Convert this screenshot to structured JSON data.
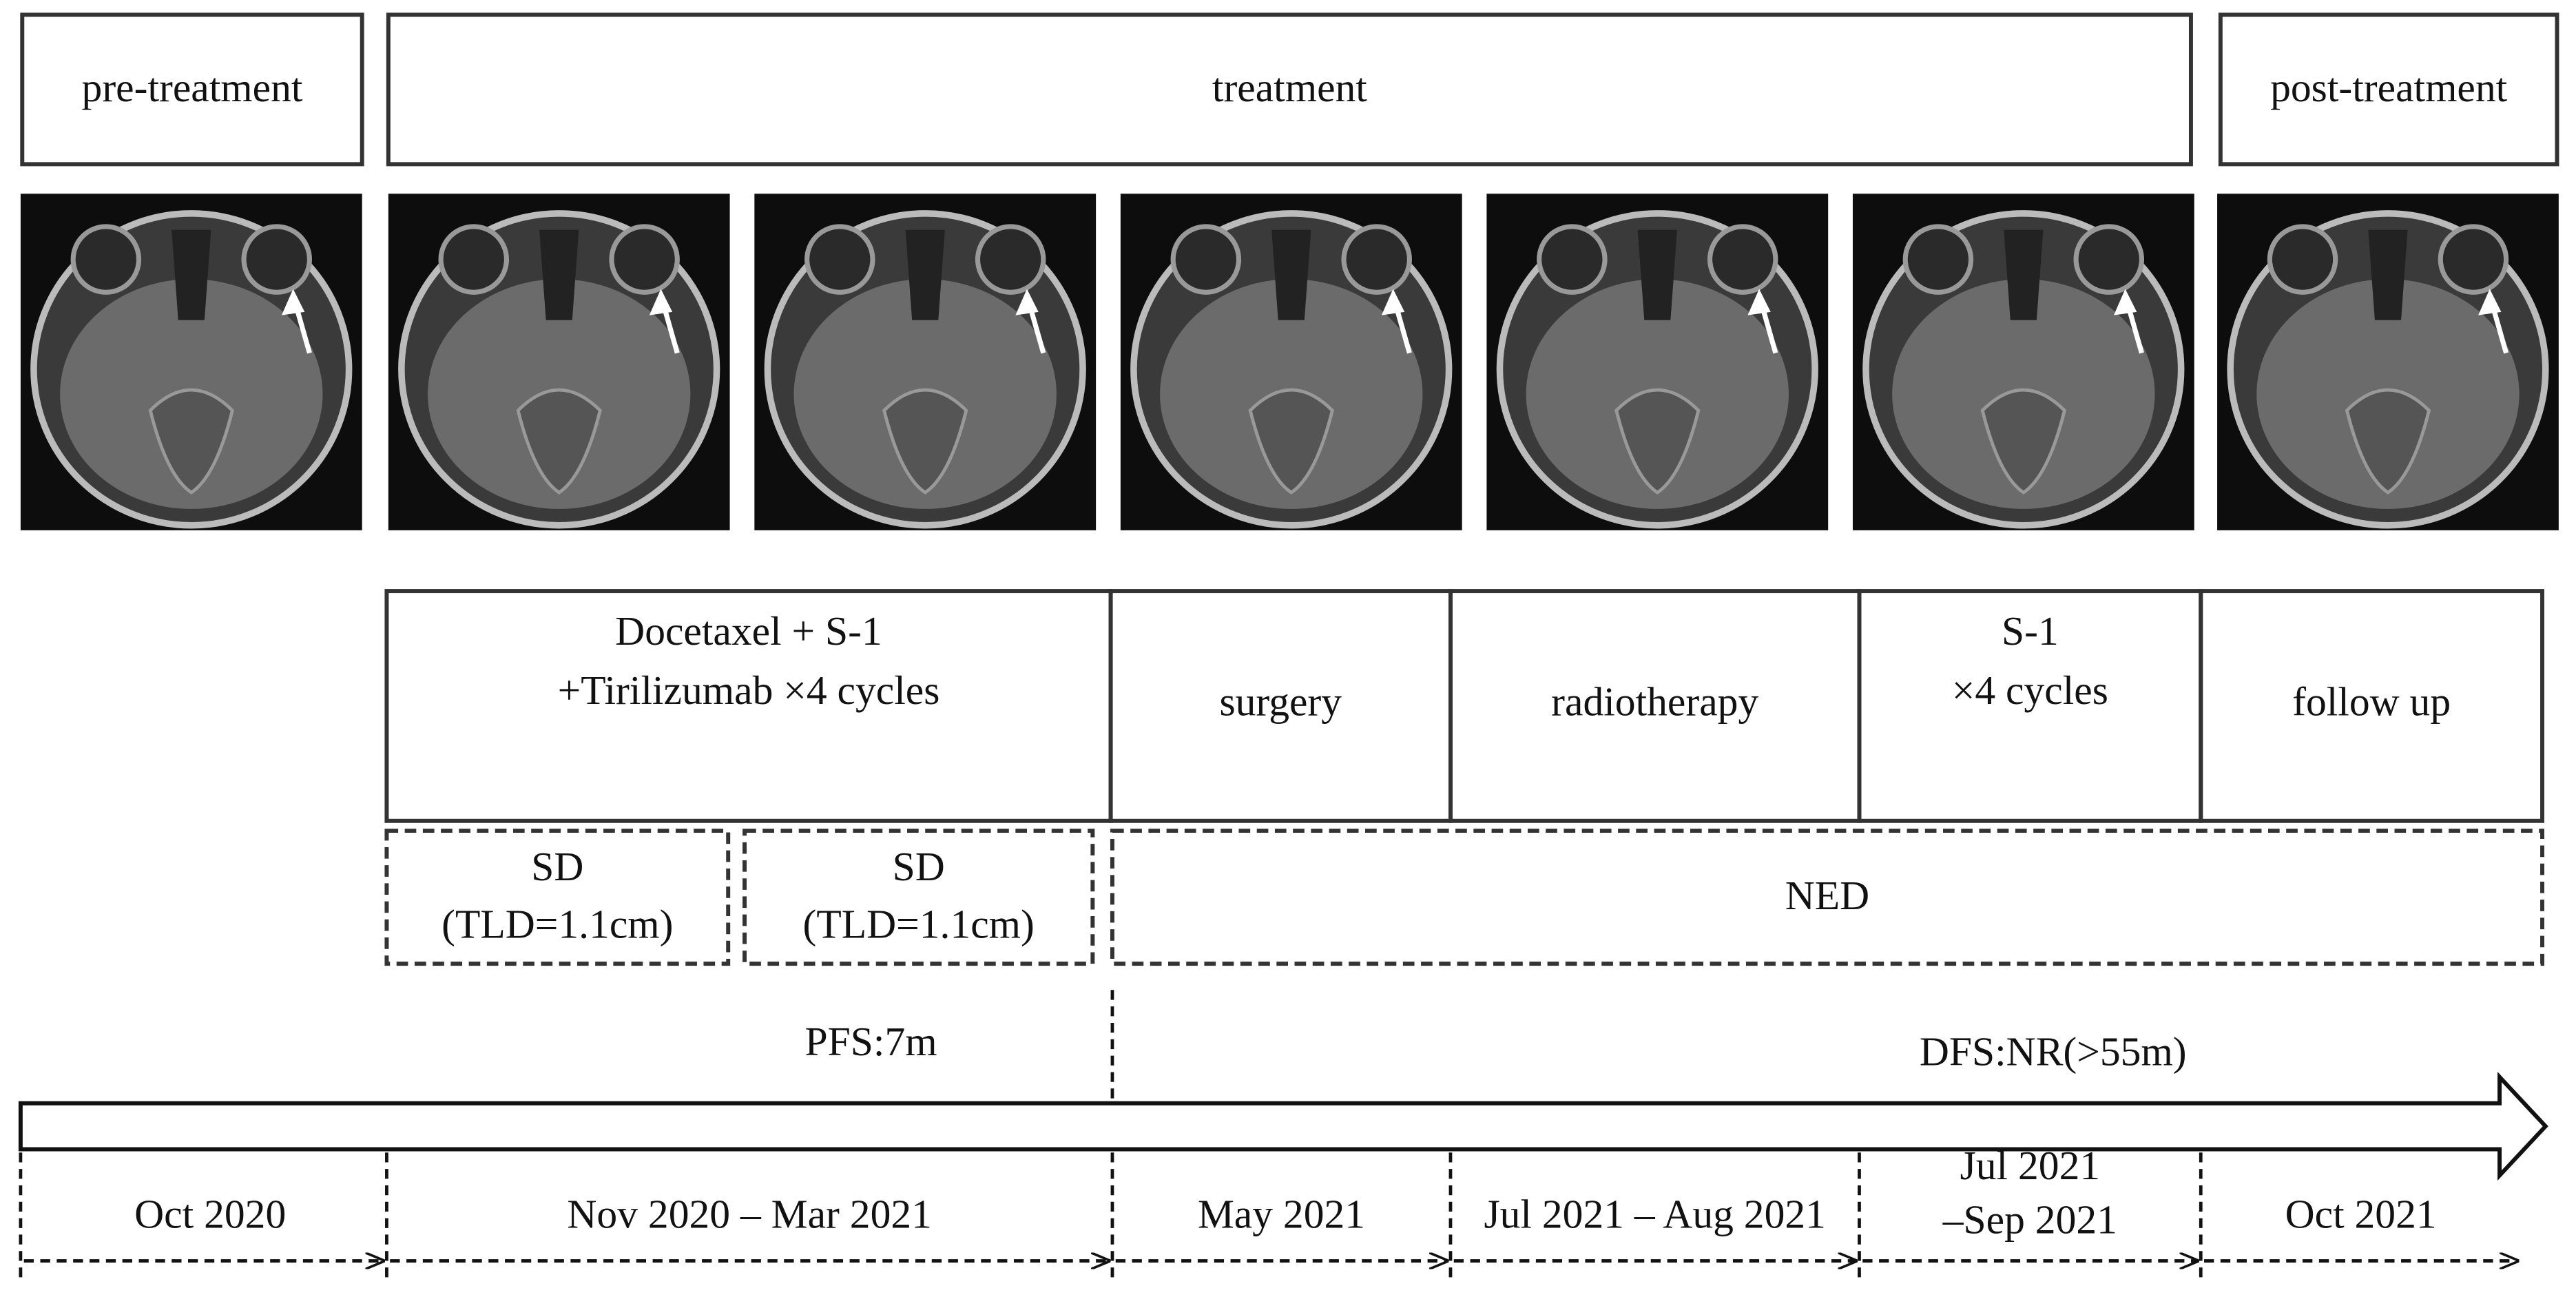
{
  "phases": [
    "pre-treatment",
    "treatment",
    "post-treatment"
  ],
  "treatments": [
    [
      "Docetaxel + S-1",
      "+Tirilizumab ×4 cycles"
    ],
    [
      "surgery"
    ],
    [
      "radiotherapy"
    ],
    [
      "S-1",
      "×4 cycles"
    ],
    [
      "follow up"
    ]
  ],
  "responses": [
    [
      "SD",
      "(TLD=1.1cm)"
    ],
    [
      "SD",
      "(TLD=1.1cm)"
    ],
    [
      "NED"
    ]
  ],
  "survival": [
    "PFS:7m",
    "DFS:NR(>55m)"
  ],
  "dates": [
    [
      "Oct 2020"
    ],
    [
      "Nov 2020 – Mar 2021"
    ],
    [
      "May 2021"
    ],
    [
      "Jul 2021 – Aug 2021"
    ],
    [
      "Jul 2021",
      "–Sep 2021"
    ],
    [
      "Oct 2021"
    ]
  ]
}
